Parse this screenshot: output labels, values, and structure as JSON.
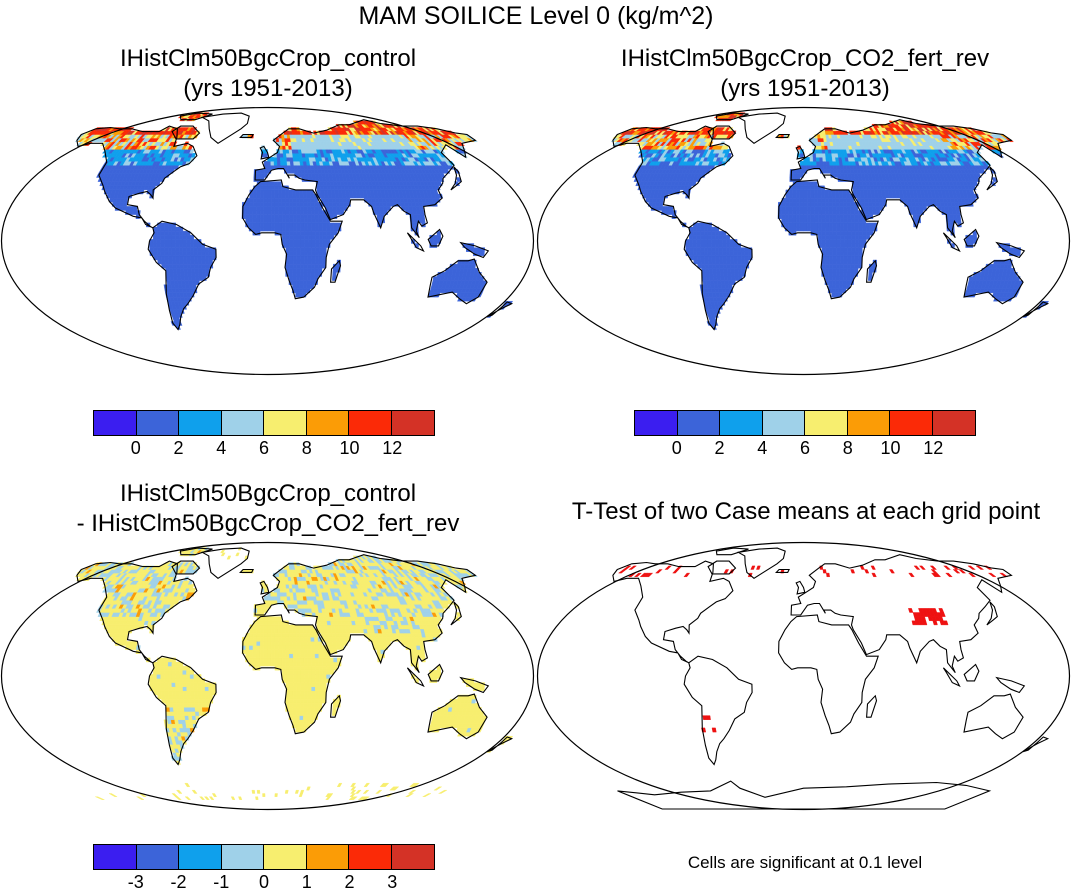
{
  "figure": {
    "title": "MAM SOILICE Level 0 (kg/m^2)"
  },
  "panels": [
    {
      "id": "control",
      "title_line1": "IHistClm50BgcCrop_control",
      "title_line2": "(yrs 1951-2013)"
    },
    {
      "id": "co2_fert_rev",
      "title_line1": "IHistClm50BgcCrop_CO2_fert_rev",
      "title_line2": "(yrs 1951-2013)"
    },
    {
      "id": "difference",
      "title_line1": "IHistClm50BgcCrop_control",
      "title_line2": "- IHistClm50BgcCrop_CO2_fert_rev"
    },
    {
      "id": "ttest",
      "title_line1": "T-Test of two Case means at each grid point",
      "note": "Cells are significant at 0.1 level"
    }
  ],
  "chart_data": [
    {
      "type": "heatmap",
      "title": "IHistClm50BgcCrop_control (yrs 1951-2013)",
      "projection": "Robinson",
      "colorbar": {
        "colors": [
          "#3b1ef0",
          "#3c64d9",
          "#0fa0ec",
          "#9fd1e9",
          "#f7ee6f",
          "#fb9c06",
          "#fb2a07",
          "#d43226"
        ],
        "tick_labels": [
          "0",
          "2",
          "4",
          "6",
          "8",
          "10",
          "12"
        ]
      }
    },
    {
      "type": "heatmap",
      "title": "IHistClm50BgcCrop_CO2_fert_rev (yrs 1951-2013)",
      "projection": "Robinson",
      "colorbar": {
        "colors": [
          "#3b1ef0",
          "#3c64d9",
          "#0fa0ec",
          "#9fd1e9",
          "#f7ee6f",
          "#fb9c06",
          "#fb2a07",
          "#d43226"
        ],
        "tick_labels": [
          "0",
          "2",
          "4",
          "6",
          "8",
          "10",
          "12"
        ]
      }
    },
    {
      "type": "heatmap",
      "title": "IHistClm50BgcCrop_control - IHistClm50BgcCrop_CO2_fert_rev",
      "projection": "Robinson",
      "colorbar": {
        "colors": [
          "#3b1ef0",
          "#3c64d9",
          "#0fa0ec",
          "#9fd1e9",
          "#f7ee6f",
          "#fb9c06",
          "#fb2a07",
          "#d43226"
        ],
        "tick_labels": [
          "-3",
          "-2",
          "-1",
          "0",
          "1",
          "2",
          "3"
        ]
      }
    },
    {
      "type": "heatmap",
      "title": "T-Test of two Case means at each grid point",
      "projection": "Robinson",
      "significant_color": "#ee1111"
    }
  ],
  "colors": {
    "ocean": "#ffffff",
    "coast": "#000000",
    "low": "#3c64d9",
    "mid": "#0fa0ec",
    "light": "#9fd1e9",
    "yellow": "#f7ee6f",
    "orange": "#fb9c06",
    "red": "#fb2a07",
    "darkred": "#d43226",
    "sig": "#ee1111"
  }
}
